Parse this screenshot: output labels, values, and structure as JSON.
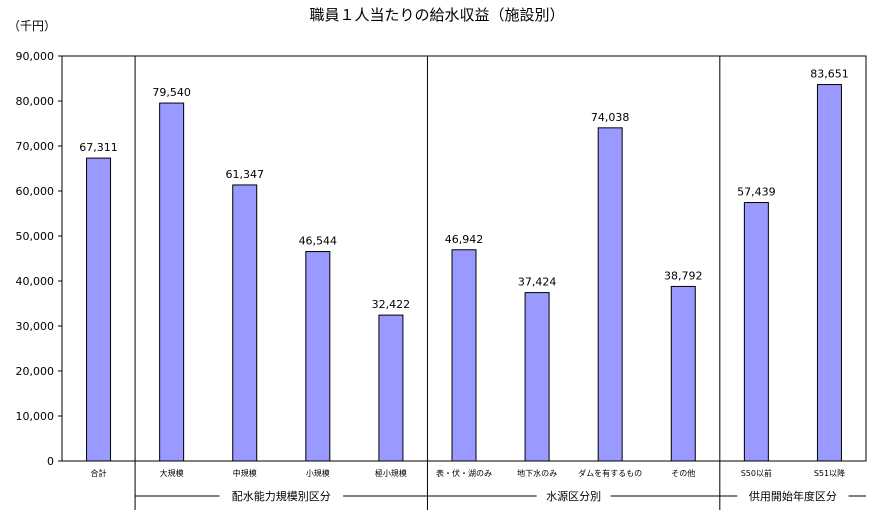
{
  "chart_data": {
    "type": "bar",
    "title": "職員１人当たりの給水収益（施設別）",
    "ylabel": "（千円）",
    "xlabel": "",
    "ylim": [
      0,
      90000
    ],
    "yticks": [
      "0",
      "10,000",
      "20,000",
      "30,000",
      "40,000",
      "50,000",
      "60,000",
      "70,000",
      "80,000",
      "90,000"
    ],
    "grid": false,
    "bar_color": "#9999ff",
    "categories": [
      "合計",
      "大規模",
      "中規模",
      "小規模",
      "極小規模",
      "表・伏・湖のみ",
      "地下水のみ",
      "ダムを有するもの",
      "その他",
      "S50以前",
      "S51以降"
    ],
    "values": [
      67311,
      79540,
      61347,
      46544,
      32422,
      46942,
      37424,
      74038,
      38792,
      57439,
      83651
    ],
    "value_labels": [
      "67,311",
      "79,540",
      "61,347",
      "46,544",
      "32,422",
      "46,942",
      "37,424",
      "74,038",
      "38,792",
      "57,439",
      "83,651"
    ],
    "groups": [
      {
        "label": "配水能力規模別区分",
        "start": 1,
        "end": 4
      },
      {
        "label": "水源区分別",
        "start": 5,
        "end": 8
      },
      {
        "label": "供用開始年度区分",
        "start": 9,
        "end": 10
      }
    ]
  }
}
